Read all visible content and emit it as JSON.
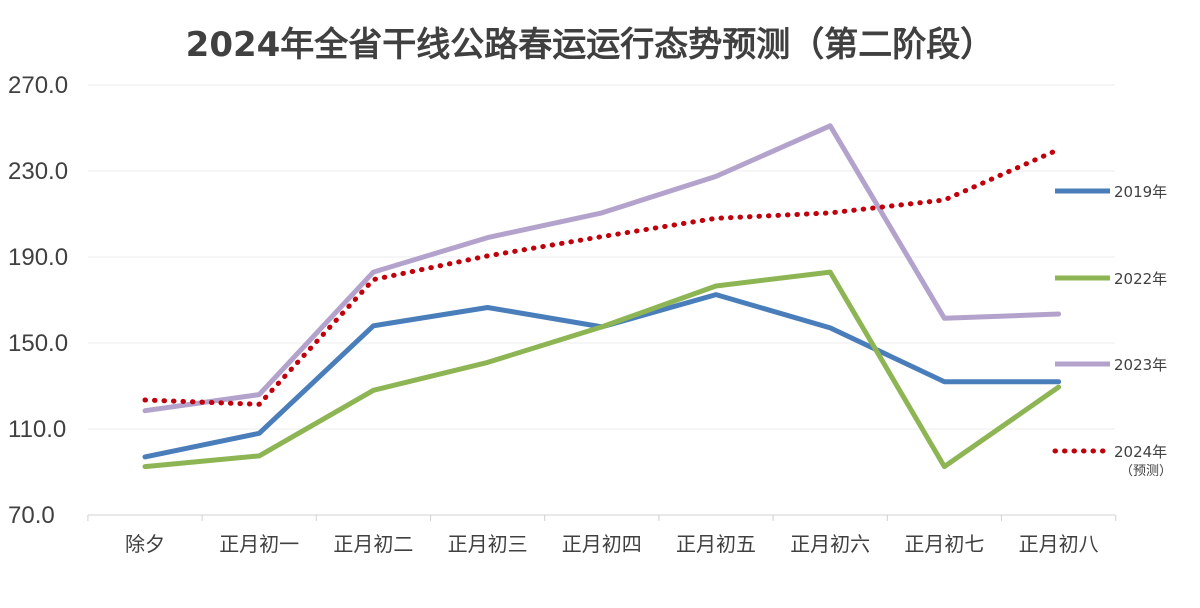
{
  "chart_data": {
    "type": "line",
    "title": "2024年全省干线公路春运运行态势预测（第二阶段）",
    "xlabel": "",
    "ylabel": "",
    "categories": [
      "除夕",
      "正月初一",
      "正月初二",
      "正月初三",
      "正月初四",
      "正月初五",
      "正月初六",
      "正月初七",
      "正月初八"
    ],
    "ylim": [
      70.0,
      270.0
    ],
    "yticks": [
      "70.0",
      "110.0",
      "150.0",
      "190.0",
      "230.0",
      "270.0"
    ],
    "grid": true,
    "legend_position": "right",
    "series": [
      {
        "name": "2019年",
        "color": "#4a7ebb",
        "style": "solid",
        "values": [
          97.0,
          108.0,
          158.0,
          166.5,
          157.5,
          172.5,
          157.0,
          132.0,
          132.0
        ]
      },
      {
        "name": "2022年",
        "color": "#8db554",
        "style": "solid",
        "values": [
          92.5,
          97.5,
          128.0,
          141.0,
          157.5,
          176.5,
          183.0,
          92.5,
          129.5
        ]
      },
      {
        "name": "2023年",
        "color": "#b3a3cc",
        "style": "solid",
        "values": [
          118.5,
          126.0,
          183.0,
          199.0,
          210.5,
          227.5,
          251.0,
          161.5,
          163.5
        ]
      },
      {
        "name": "2024年",
        "name_sub": "（预测）",
        "color": "#c0000a",
        "style": "dotted",
        "values": [
          123.5,
          121.5,
          179.5,
          190.5,
          199.5,
          208.0,
          210.5,
          216.5,
          240.0
        ]
      }
    ]
  }
}
